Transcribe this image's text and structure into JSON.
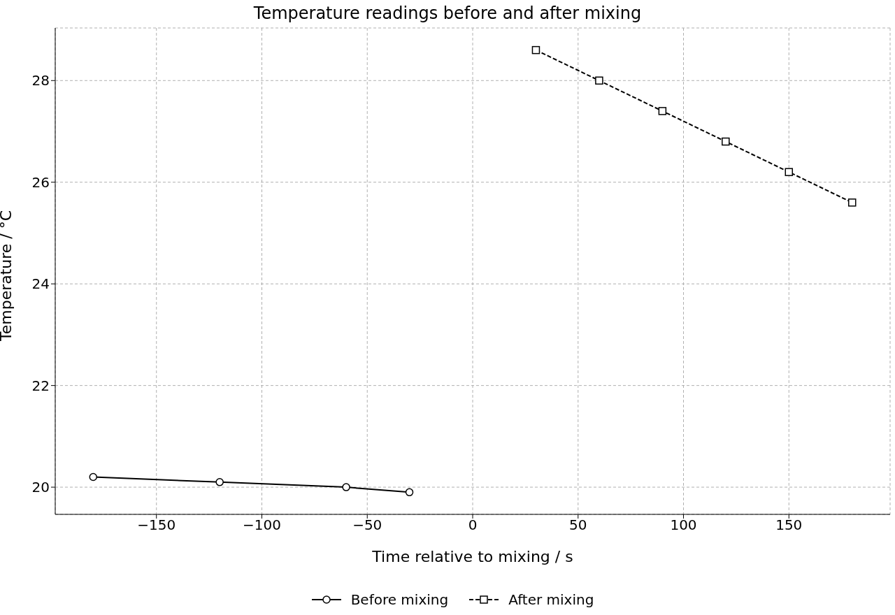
{
  "chart_data": {
    "type": "line",
    "title": "Temperature readings before and after mixing",
    "xlabel": "Time relative to mixing / s",
    "ylabel": "Temperature / °C",
    "xlim": [
      -198,
      198
    ],
    "xticks": [
      -150,
      -100,
      -50,
      0,
      50,
      100,
      150
    ],
    "ylim": [
      19.465,
      29.035
    ],
    "yticks": [
      20,
      22,
      24,
      26,
      28
    ],
    "grid": true,
    "legend": "bottom",
    "series": [
      {
        "name": "Before mixing",
        "color": "#000000",
        "marker": "circle",
        "line_style": "solid",
        "x": [
          -180,
          -120,
          -60,
          -30
        ],
        "values": [
          20.2,
          20.1,
          20.0,
          19.9
        ]
      },
      {
        "name": "After mixing",
        "color": "#000000",
        "marker": "square",
        "line_style": "dashed",
        "x": [
          30,
          60,
          90,
          120,
          150,
          180
        ],
        "values": [
          28.6,
          28.0,
          27.4,
          26.8,
          26.2,
          25.6
        ]
      }
    ]
  }
}
